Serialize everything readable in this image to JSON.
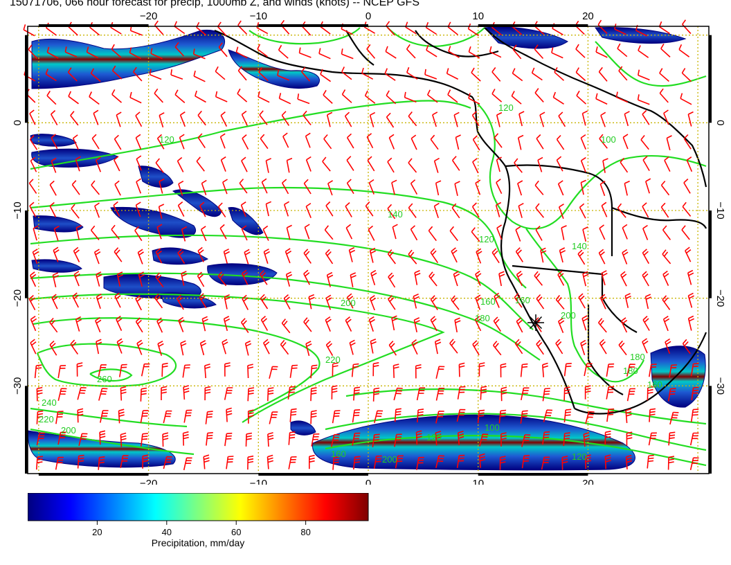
{
  "title": "15071706, 066 hour forecast for precip, 1000mb Z, and winds (knots) -- NCEP GFS",
  "map": {
    "lon_range": [
      -31,
      31
    ],
    "lat_range": [
      -40,
      11
    ],
    "lon_ticks": [
      -20,
      -10,
      0,
      10,
      20
    ],
    "lat_ticks": [
      0,
      -10,
      -20,
      -30
    ],
    "lon_tick_labels": [
      "−20",
      "−10",
      "0",
      "10",
      "20"
    ],
    "lat_tick_labels": [
      "0",
      "−10",
      "−20",
      "−30"
    ],
    "grid_spacing_deg": 10,
    "colors": {
      "grid": "#c8b400",
      "coast": "#000000",
      "contour": "#22dd22",
      "contour_label": "#22cc22",
      "wind_barb": "#ff0000",
      "precip_low": "#000080",
      "precip_mid": "#00c8c8",
      "precip_high": "#800000"
    },
    "contour_labels": [
      "120",
      "100",
      "120",
      "140",
      "120",
      "140",
      "160",
      "180",
      "200",
      "180",
      "160",
      "200",
      "220",
      "240",
      "220",
      "200",
      "260",
      "100",
      "120",
      "160",
      "180",
      "160",
      "200",
      "120"
    ],
    "marker": "asterisk"
  },
  "colorbar": {
    "label": "Precipitation, mm/day",
    "ticks": [
      "20",
      "40",
      "60",
      "80"
    ],
    "tick_values": [
      20,
      40,
      60,
      80
    ],
    "range": [
      0,
      98
    ],
    "stops": [
      "#00007f",
      "#0000ff",
      "#007fff",
      "#00ffff",
      "#7fff7f",
      "#ffff00",
      "#ff7f00",
      "#ff0000",
      "#7f0000"
    ]
  }
}
